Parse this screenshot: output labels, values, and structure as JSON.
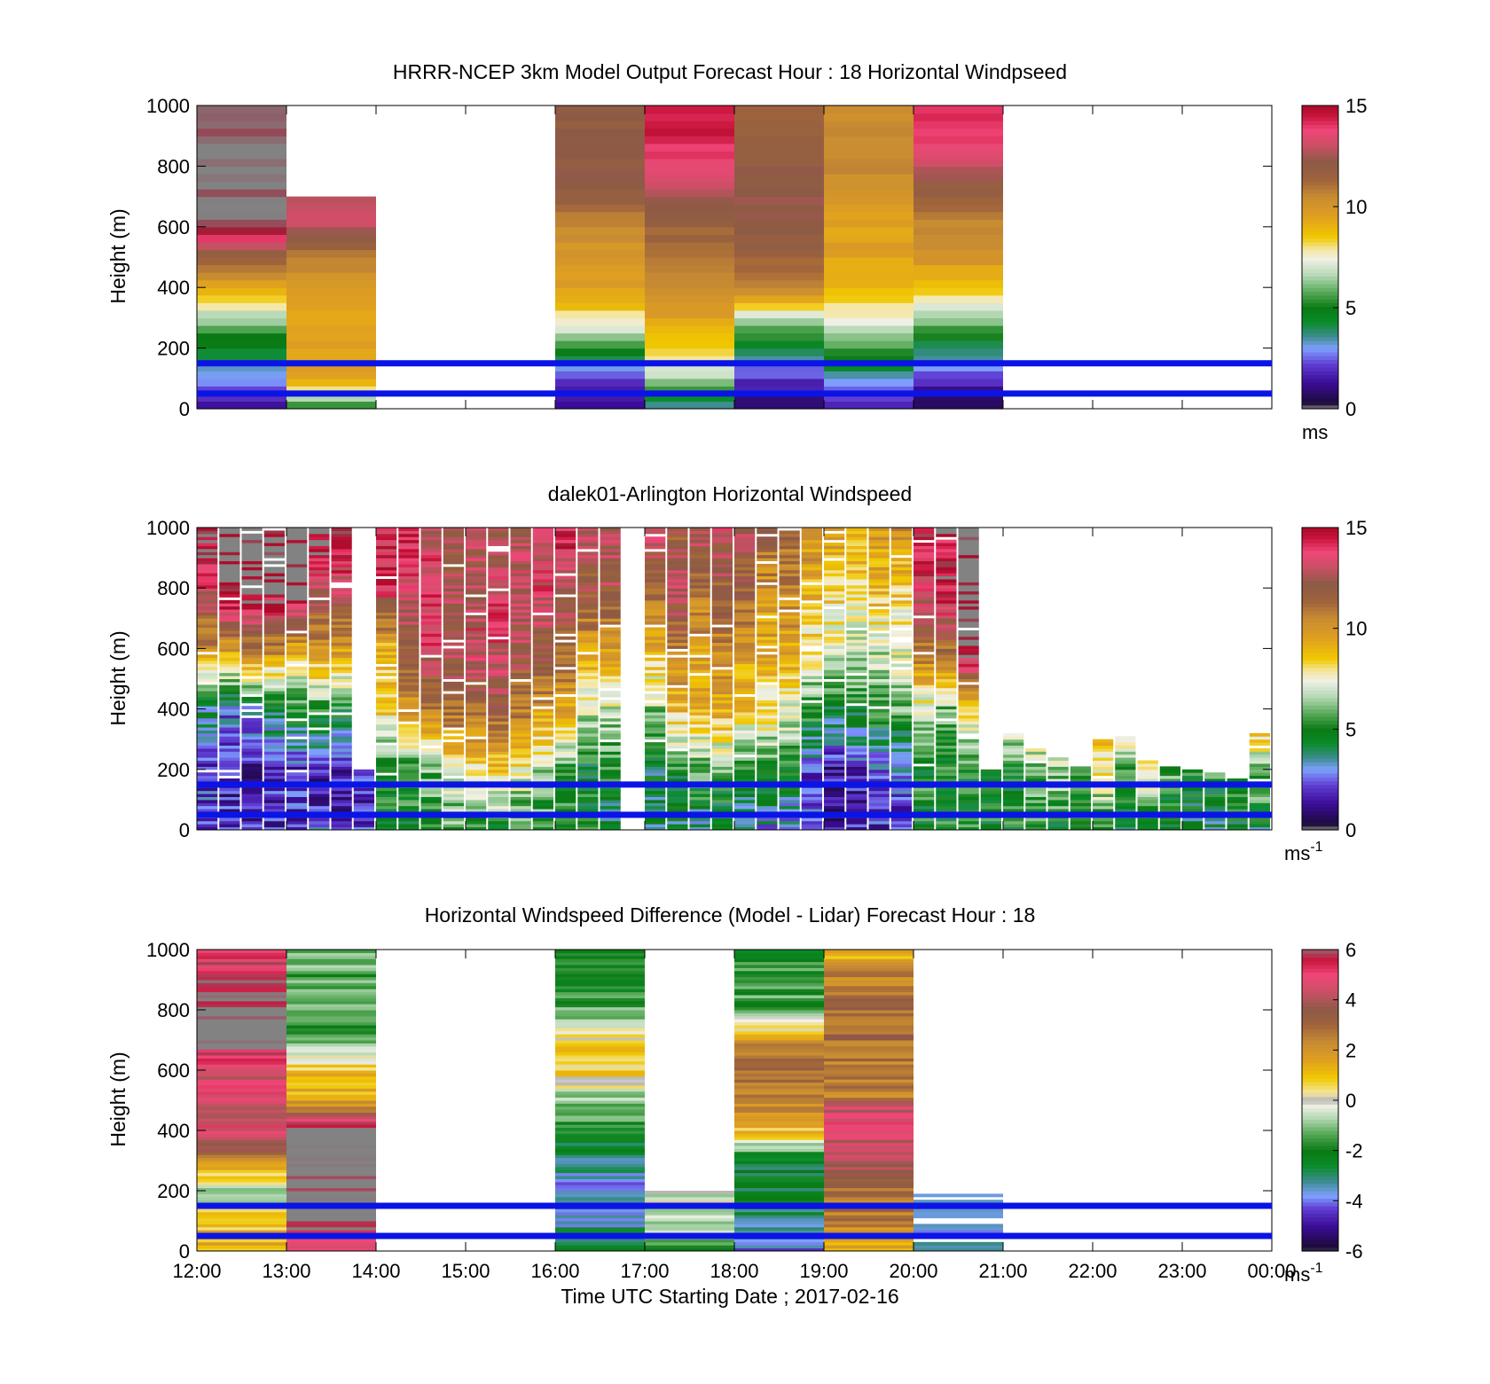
{
  "chart_data": [
    {
      "type": "heatmap",
      "title": "HRRR-NCEP 3km Model Output   Forecast Hour : 18 Horizontal Windpseed",
      "ylabel": "Height (m)",
      "yticks": [
        "0",
        "200",
        "400",
        "600",
        "800",
        "1000"
      ],
      "ylim": [
        0,
        1000
      ],
      "colorbar": {
        "ticks": [
          "0",
          "5",
          "10",
          "15"
        ],
        "range": [
          0,
          15
        ],
        "unit": "ms",
        "unit_sup": ""
      },
      "reference_lines_m": [
        50,
        150
      ],
      "grid": false,
      "hours_utc": [
        12,
        13,
        16,
        17,
        18,
        19,
        20
      ],
      "heights_m": [
        0,
        100,
        200,
        300,
        400,
        500,
        600,
        700,
        800,
        900,
        1000
      ],
      "values_ms": [
        [
          1.5,
          3.0,
          4.5,
          6.5,
          9.5,
          11.5,
          15.5,
          15.5,
          15.5,
          15.5,
          15.5
        ],
        [
          5.0,
          9.5,
          9.5,
          9.5,
          10.0,
          10.5,
          13.0,
          null,
          null,
          null,
          null
        ],
        [
          1.0,
          2.0,
          5.0,
          8.0,
          9.5,
          10.0,
          10.5,
          12.0,
          12.0,
          12.0,
          12.0
        ],
        [
          3.0,
          6.5,
          8.5,
          9.5,
          10.5,
          11.0,
          11.5,
          12.5,
          13.5,
          14.5,
          14.5
        ],
        [
          0.5,
          2.0,
          4.0,
          7.0,
          10.5,
          11.5,
          12.0,
          12.5,
          12.0,
          11.5,
          11.5
        ],
        [
          1.5,
          3.5,
          5.5,
          7.5,
          9.0,
          9.5,
          9.5,
          10.0,
          10.5,
          10.5,
          10.5
        ],
        [
          0.5,
          2.0,
          4.0,
          6.5,
          8.5,
          10.0,
          10.5,
          11.5,
          13.0,
          14.0,
          14.0
        ]
      ]
    },
    {
      "type": "heatmap",
      "title": "dalek01-Arlington  Horizontal Windspeed",
      "ylabel": "Height (m)",
      "yticks": [
        "0",
        "200",
        "400",
        "600",
        "800",
        "1000"
      ],
      "ylim": [
        0,
        1000
      ],
      "colorbar": {
        "ticks": [
          "0",
          "5",
          "10",
          "15"
        ],
        "range": [
          0,
          15
        ],
        "unit": "ms",
        "unit_sup": "-1"
      },
      "reference_lines_m": [
        50,
        150
      ],
      "grid": false,
      "profile_heights_m": [
        0,
        200,
        400,
        600,
        800,
        1000
      ],
      "profiles": [
        {
          "t": 12.0,
          "v": [
            2.5,
            2.0,
            4.0,
            10.0,
            13.5,
            16.0
          ],
          "top": 1000
        },
        {
          "t": 12.25,
          "v": [
            2.0,
            1.5,
            3.0,
            10.0,
            16.0,
            16.0
          ],
          "top": 1000
        },
        {
          "t": 12.5,
          "v": [
            2.0,
            1.5,
            3.5,
            11.0,
            16.0,
            16.0
          ],
          "top": 1000
        },
        {
          "t": 12.75,
          "v": [
            2.0,
            2.0,
            4.5,
            10.5,
            16.0,
            16.0
          ],
          "top": 1000
        },
        {
          "t": 13.0,
          "v": [
            2.0,
            2.0,
            5.0,
            9.5,
            16.0,
            16.0
          ],
          "top": 1000
        },
        {
          "t": 13.25,
          "v": [
            2.5,
            1.5,
            5.5,
            10.0,
            13.0,
            16.0
          ],
          "top": 1000
        },
        {
          "t": 13.5,
          "v": [
            2.0,
            1.5,
            5.0,
            10.0,
            13.0,
            16.0
          ],
          "top": 1000
        },
        {
          "t": 13.75,
          "v": [
            2.0,
            2.0,
            16.0,
            16.0,
            16.0,
            16.0
          ],
          "top": 200
        },
        {
          "t": 14.0,
          "v": [
            5.0,
            5.0,
            8.5,
            9.0,
            14.0,
            14.0
          ],
          "top": 1000
        },
        {
          "t": 14.25,
          "v": [
            5.0,
            5.5,
            10.0,
            12.0,
            13.5,
            14.0
          ],
          "top": 1000
        },
        {
          "t": 14.5,
          "v": [
            5.0,
            6.0,
            11.0,
            13.5,
            14.0,
            13.0
          ],
          "top": 1000
        },
        {
          "t": 14.75,
          "v": [
            5.5,
            7.5,
            11.5,
            13.0,
            12.5,
            12.0
          ],
          "top": 1000
        },
        {
          "t": 15.0,
          "v": [
            5.0,
            8.0,
            11.5,
            13.5,
            13.0,
            12.5
          ],
          "top": 1000
        },
        {
          "t": 15.25,
          "v": [
            5.0,
            8.5,
            12.0,
            13.5,
            13.5,
            12.0
          ],
          "top": 1000
        },
        {
          "t": 15.5,
          "v": [
            5.0,
            7.5,
            11.0,
            12.5,
            13.0,
            13.0
          ],
          "top": 1000
        },
        {
          "t": 15.75,
          "v": [
            5.0,
            6.5,
            10.0,
            12.0,
            13.5,
            13.0
          ],
          "top": 1000
        },
        {
          "t": 16.0,
          "v": [
            5.0,
            5.5,
            9.5,
            11.5,
            13.0,
            14.5
          ],
          "top": 1000
        },
        {
          "t": 16.25,
          "v": [
            5.0,
            4.5,
            7.0,
            10.0,
            12.0,
            13.5
          ],
          "top": 1000
        },
        {
          "t": 16.5,
          "v": [
            4.0,
            5.0,
            7.0,
            10.0,
            12.5,
            13.0
          ],
          "top": 1000
        },
        {
          "t": 17.0,
          "v": [
            4.0,
            4.5,
            6.5,
            9.0,
            12.0,
            13.0
          ],
          "top": 1000
        },
        {
          "t": 17.25,
          "v": [
            4.0,
            5.0,
            9.0,
            11.0,
            13.0,
            12.0
          ],
          "top": 1000
        },
        {
          "t": 17.5,
          "v": [
            3.5,
            6.0,
            9.0,
            10.0,
            11.0,
            13.0
          ],
          "top": 1000
        },
        {
          "t": 17.75,
          "v": [
            3.5,
            6.0,
            9.5,
            10.5,
            12.0,
            13.0
          ],
          "top": 1000
        },
        {
          "t": 18.0,
          "v": [
            3.0,
            5.0,
            8.5,
            10.0,
            11.5,
            13.0
          ],
          "top": 1000
        },
        {
          "t": 18.25,
          "v": [
            3.0,
            5.5,
            8.0,
            9.5,
            10.0,
            12.0
          ],
          "top": 1000
        },
        {
          "t": 18.5,
          "v": [
            2.5,
            5.0,
            7.5,
            9.5,
            10.5,
            11.5
          ],
          "top": 1000
        },
        {
          "t": 18.75,
          "v": [
            2.0,
            2.5,
            5.5,
            8.0,
            9.0,
            10.5
          ],
          "top": 1000
        },
        {
          "t": 19.0,
          "v": [
            1.5,
            1.5,
            4.5,
            7.5,
            8.5,
            10.0
          ],
          "top": 1000
        },
        {
          "t": 19.25,
          "v": [
            1.5,
            2.0,
            5.0,
            7.0,
            8.0,
            9.5
          ],
          "top": 1000
        },
        {
          "t": 19.5,
          "v": [
            2.0,
            2.5,
            5.5,
            7.0,
            9.0,
            10.0
          ],
          "top": 1000
        },
        {
          "t": 19.75,
          "v": [
            2.0,
            3.0,
            6.0,
            7.5,
            8.5,
            10.5
          ],
          "top": 1000
        },
        {
          "t": 20.0,
          "v": [
            5.0,
            5.0,
            7.0,
            11.0,
            14.0,
            15.0
          ],
          "top": 1000
        },
        {
          "t": 20.25,
          "v": [
            5.0,
            5.0,
            6.0,
            11.5,
            14.5,
            15.0
          ],
          "top": 1000
        },
        {
          "t": 20.5,
          "v": [
            5.0,
            5.0,
            8.0,
            16.0,
            16.0,
            16.0
          ],
          "top": 1000
        },
        {
          "t": 20.75,
          "v": [
            5.0,
            5.0,
            6.0,
            6.0,
            6.0,
            6.0
          ],
          "top": 200
        },
        {
          "t": 21.0,
          "v": [
            5.0,
            5.0,
            9.0,
            9.0,
            9.0,
            9.0
          ],
          "top": 320
        },
        {
          "t": 21.25,
          "v": [
            5.0,
            6.0,
            9.5,
            9.5,
            9.5,
            9.5
          ],
          "top": 270
        },
        {
          "t": 21.5,
          "v": [
            5.0,
            6.5,
            9.0,
            9.0,
            9.0,
            9.0
          ],
          "top": 240
        },
        {
          "t": 21.75,
          "v": [
            5.0,
            5.5,
            8.5,
            8.5,
            8.5,
            8.5
          ],
          "top": 210
        },
        {
          "t": 22.0,
          "v": [
            5.0,
            8.0,
            9.5,
            9.5,
            9.5,
            9.5
          ],
          "top": 300
        },
        {
          "t": 22.25,
          "v": [
            4.0,
            6.0,
            10.0,
            10.0,
            10.0,
            10.0
          ],
          "top": 310
        },
        {
          "t": 22.5,
          "v": [
            4.0,
            8.0,
            9.0,
            9.0,
            9.0,
            9.0
          ],
          "top": 230
        },
        {
          "t": 22.75,
          "v": [
            4.0,
            6.0,
            8.5,
            8.5,
            8.5,
            8.5
          ],
          "top": 210
        },
        {
          "t": 23.0,
          "v": [
            4.0,
            5.0,
            7.0,
            7.0,
            7.0,
            7.0
          ],
          "top": 200
        },
        {
          "t": 23.25,
          "v": [
            4.0,
            5.5,
            8.0,
            8.0,
            8.0,
            8.0
          ],
          "top": 190
        },
        {
          "t": 23.5,
          "v": [
            4.0,
            6.0,
            8.5,
            8.5,
            8.5,
            8.5
          ],
          "top": 170
        },
        {
          "t": 23.75,
          "v": [
            4.0,
            6.5,
            9.5,
            9.5,
            9.5,
            9.5
          ],
          "top": 320
        }
      ]
    },
    {
      "type": "heatmap",
      "title": "Horizontal Windspeed Difference (Model - Lidar) Forecast Hour : 18",
      "xlabel": "Time UTC  Starting Date ; 2017-02-16",
      "ylabel": "Height (m)",
      "xticks": [
        "12:00",
        "13:00",
        "14:00",
        "15:00",
        "16:00",
        "17:00",
        "18:00",
        "19:00",
        "20:00",
        "21:00",
        "22:00",
        "23:00",
        "00:00"
      ],
      "yticks": [
        "0",
        "200",
        "400",
        "600",
        "800",
        "1000"
      ],
      "ylim": [
        0,
        1000
      ],
      "colorbar": {
        "ticks": [
          "6",
          "4",
          "2",
          "0",
          "-2",
          "-4",
          "-6"
        ],
        "range": [
          -6,
          6
        ],
        "unit": "ms",
        "unit_sup": "-1"
      },
      "reference_lines_m": [
        50,
        150
      ],
      "grid": false,
      "hours_utc": [
        12,
        13,
        16,
        17,
        18,
        19,
        20
      ],
      "heights_m": [
        0,
        100,
        200,
        300,
        400,
        500,
        600,
        700,
        800,
        900,
        1000
      ],
      "diff_ms": [
        [
          1.5,
          1.0,
          -1.0,
          2.5,
          4.5,
          4.5,
          4.5,
          6.5,
          6.5,
          5.5,
          5.0
        ],
        [
          5.0,
          6.5,
          6.5,
          6.5,
          6.5,
          1.5,
          1.0,
          -1.5,
          -1.5,
          -1.5,
          -1.0
        ],
        [
          -2.5,
          -3.5,
          -4.0,
          -3.0,
          -2.0,
          -1.0,
          1.0,
          0.5,
          -1.5,
          -2.0,
          -1.5
        ],
        [
          -1.5,
          -0.5,
          null,
          null,
          null,
          null,
          null,
          null,
          null,
          null,
          null
        ],
        [
          -4.0,
          -3.0,
          -2.5,
          -2.5,
          1.0,
          2.5,
          3.0,
          2.0,
          -1.5,
          -1.5,
          -2.0
        ],
        [
          1.0,
          2.5,
          3.0,
          4.0,
          4.5,
          null,
          2.5,
          3.0,
          3.0,
          2.5,
          1.0
        ],
        [
          -3.0,
          -3.5,
          null,
          null,
          null,
          null,
          null,
          null,
          null,
          null,
          null
        ]
      ]
    }
  ],
  "colors": {
    "reference_line": "#0a14e6",
    "missing": "#828282",
    "background": "#ffffff"
  }
}
